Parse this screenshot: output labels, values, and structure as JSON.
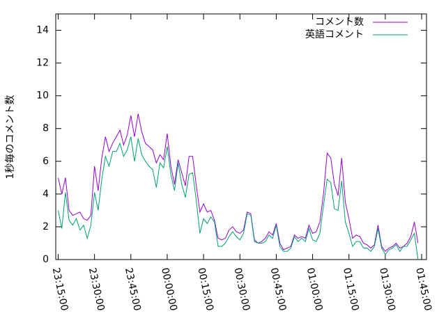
{
  "chart_data": {
    "type": "line",
    "ylabel": "1秒毎のコメント数",
    "x": [
      "23:15:00",
      "23:16:30",
      "23:18:00",
      "23:19:30",
      "23:21:00",
      "23:22:30",
      "23:24:00",
      "23:25:30",
      "23:27:00",
      "23:28:30",
      "23:30:00",
      "23:31:30",
      "23:33:00",
      "23:34:30",
      "23:36:00",
      "23:37:30",
      "23:39:00",
      "23:40:30",
      "23:42:00",
      "23:43:30",
      "23:45:00",
      "23:46:30",
      "23:48:00",
      "23:49:30",
      "23:51:00",
      "23:52:30",
      "23:54:00",
      "23:55:30",
      "23:57:00",
      "23:58:30",
      "00:00:00",
      "00:01:30",
      "00:03:00",
      "00:04:30",
      "00:06:00",
      "00:07:30",
      "00:09:00",
      "00:10:30",
      "00:12:00",
      "00:13:30",
      "00:15:00",
      "00:16:30",
      "00:18:00",
      "00:19:30",
      "00:21:00",
      "00:22:30",
      "00:24:00",
      "00:25:30",
      "00:27:00",
      "00:28:30",
      "00:30:00",
      "00:31:30",
      "00:33:00",
      "00:34:30",
      "00:36:00",
      "00:37:30",
      "00:39:00",
      "00:40:30",
      "00:42:00",
      "00:43:30",
      "00:45:00",
      "00:46:30",
      "00:48:00",
      "00:49:30",
      "00:51:00",
      "00:52:30",
      "00:54:00",
      "00:55:30",
      "00:57:00",
      "00:58:30",
      "01:00:00",
      "01:01:30",
      "01:03:00",
      "01:04:30",
      "01:06:00",
      "01:07:30",
      "01:09:00",
      "01:10:30",
      "01:12:00",
      "01:13:30",
      "01:15:00",
      "01:16:30",
      "01:18:00",
      "01:19:30",
      "01:21:00",
      "01:22:30",
      "01:24:00",
      "01:25:30",
      "01:27:00",
      "01:28:30",
      "01:30:00",
      "01:31:30",
      "01:33:00",
      "01:34:30",
      "01:36:00",
      "01:37:30",
      "01:39:00",
      "01:40:30",
      "01:42:00",
      "01:43:30"
    ],
    "series": [
      {
        "name": "コメント数",
        "color": "#9400d3",
        "values": [
          5,
          4,
          5,
          3,
          2.7,
          2.8,
          2.9,
          2.5,
          2.4,
          2.7,
          5.7,
          4.2,
          6.2,
          7.5,
          6.6,
          7.1,
          7.5,
          7.9,
          7,
          7.6,
          8.8,
          7.5,
          8.9,
          7.8,
          7.1,
          6.9,
          6.7,
          5.9,
          6.4,
          6.1,
          7.7,
          5.7,
          4.6,
          6.1,
          5.3,
          4.5,
          6.3,
          6.3,
          4.5,
          2.9,
          3.4,
          2.9,
          3,
          2.4,
          1.3,
          1.2,
          1.3,
          1.8,
          2,
          1.7,
          1.6,
          1.8,
          2.9,
          2.8,
          1.2,
          1.0,
          1.1,
          1.3,
          1.7,
          1.5,
          2.2,
          1.0,
          0.6,
          0.7,
          0.8,
          1.5,
          1.3,
          1.4,
          1.3,
          2.1,
          1.6,
          1.7,
          2.3,
          4.0,
          6.5,
          6.2,
          4.6,
          3.9,
          6.2,
          3.5,
          2.5,
          1.3,
          1.5,
          1.4,
          1.0,
          0.9,
          0.7,
          0.9,
          2.1,
          0.8,
          0.5,
          0.7,
          0.8,
          1.0,
          0.7,
          0.8,
          1.0,
          1.4,
          2.3,
          1.0
        ]
      },
      {
        "name": "英語コメント",
        "color": "#009e73",
        "values": [
          3,
          1.9,
          4.1,
          2.4,
          2.1,
          2.5,
          1.8,
          2.1,
          1.3,
          2.1,
          4.1,
          3,
          4.9,
          6.3,
          5.7,
          6.6,
          6.6,
          7.1,
          6.3,
          6.7,
          7.5,
          6,
          7.4,
          6.4,
          6,
          5.7,
          5.5,
          4.4,
          5.9,
          5.6,
          6.9,
          5.2,
          4.2,
          5.9,
          4.6,
          3.8,
          5.2,
          5.3,
          3.6,
          1.6,
          2.5,
          2.2,
          2.6,
          2.3,
          0.8,
          0.8,
          1,
          1.4,
          1.7,
          1.4,
          1.2,
          1.6,
          2.8,
          2.7,
          1.1,
          1.0,
          1.0,
          1.1,
          1.5,
          1.3,
          2.1,
          0.8,
          0.5,
          0.5,
          0.7,
          1.4,
          1.1,
          1.3,
          1.1,
          1.9,
          1.2,
          1.1,
          1.6,
          3.3,
          4.9,
          4.7,
          3.1,
          3.0,
          4.8,
          2.3,
          1.6,
          0.8,
          1.1,
          1.1,
          0.7,
          0.7,
          0.5,
          0.8,
          1.9,
          0.7,
          0.3,
          0.6,
          0.7,
          0.9,
          0.5,
          0.8,
          0.8,
          1.2,
          1.6,
          0
        ]
      }
    ],
    "xlim": [
      "23:14:00",
      "01:47:00"
    ],
    "xticks": [
      "23:15:00",
      "23:30:00",
      "23:45:00",
      "00:00:00",
      "00:15:00",
      "00:30:00",
      "00:45:00",
      "01:00:00",
      "01:15:00",
      "01:30:00",
      "01:45:00"
    ],
    "ylim": [
      0,
      15
    ],
    "yticks": [
      0,
      2,
      4,
      6,
      8,
      10,
      12,
      14
    ],
    "legend": "top-right",
    "grid": false
  }
}
